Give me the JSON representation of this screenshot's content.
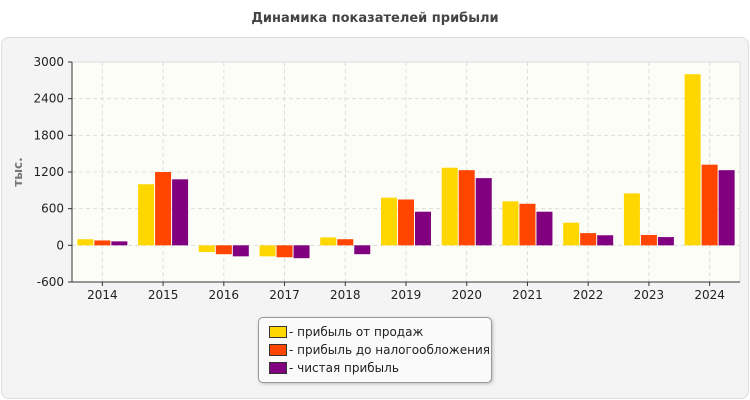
{
  "chart_data": {
    "type": "bar",
    "title": "Динамика показателей прибыли",
    "ylabel": "тыс.",
    "xlabel": "",
    "ylim": [
      -600,
      3000
    ],
    "yticks": [
      -600,
      0,
      600,
      1200,
      1800,
      2400,
      3000
    ],
    "grid": true,
    "legend_position": "bottom",
    "categories": [
      "2014",
      "2015",
      "2016",
      "2017",
      "2018",
      "2019",
      "2020",
      "2021",
      "2022",
      "2023",
      "2024"
    ],
    "series": [
      {
        "name": "- прибыль от продаж",
        "color": "#FFD700",
        "values": [
          100,
          1000,
          -110,
          -180,
          130,
          780,
          1270,
          720,
          370,
          850,
          2800
        ]
      },
      {
        "name": "- прибыль до налогообложения",
        "color": "#FF4500",
        "values": [
          80,
          1200,
          -145,
          -195,
          100,
          750,
          1230,
          680,
          200,
          170,
          1320
        ]
      },
      {
        "name": "- чистая прибыль",
        "color": "#800080",
        "values": [
          65,
          1080,
          -180,
          -210,
          -145,
          550,
          1100,
          550,
          165,
          135,
          1230
        ]
      }
    ]
  }
}
